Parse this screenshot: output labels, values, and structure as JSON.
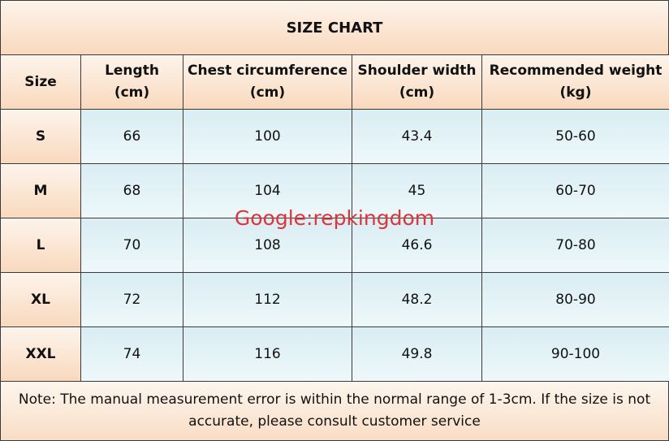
{
  "table": {
    "title": "SIZE CHART",
    "header": [
      [
        "Size"
      ],
      [
        "Length",
        "(cm)"
      ],
      [
        "Chest circumference",
        "(cm)"
      ],
      [
        "Shoulder width",
        "(cm)"
      ],
      [
        "Recommended weight",
        "(kg)"
      ]
    ],
    "rows": [
      [
        "S",
        66,
        100,
        43.4,
        "50-60"
      ],
      [
        "M",
        68,
        104,
        45,
        "60-70"
      ],
      [
        "L",
        70,
        108,
        46.6,
        "70-80"
      ],
      [
        "XL",
        72,
        112,
        48.2,
        "80-90"
      ],
      [
        "XXL",
        74,
        116,
        49.8,
        "90-100"
      ]
    ],
    "note": "Note: The manual measurement error is within the normal range of 1-3cm. If the size is not accurate, please consult customer service"
  },
  "watermark": "Google:repkingdom"
}
